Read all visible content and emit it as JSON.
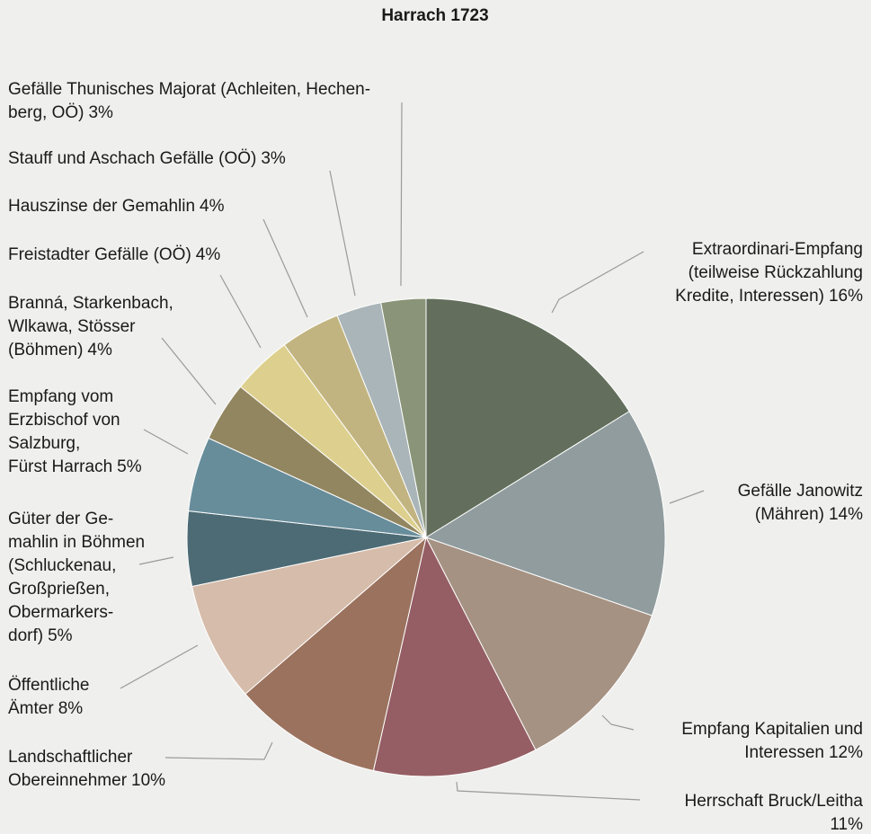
{
  "chart_data": {
    "type": "pie",
    "title": "Harrach 1723",
    "categories": [
      "Extraordinari-Empfang\n(teilweise Rückzahlung\nKredite, Interessen)",
      "Gefälle Janowitz\n(Mähren)",
      "Empfang Kapitalien und\nInteressen",
      "Herrschaft Bruck/Leitha",
      "Landschaftlicher\nObereinnehmer",
      "Öffentliche\nÄmter",
      "Güter der Ge-\nmahlin in Böhmen\n(Schluckenau,\nGroßprießen,\nObermarkers-\ndorf)",
      "Empfang vom\nErzbischof von\nSalzburg,\nFürst Harrach",
      "Branná, Starkenbach,\nWlkawa, Stösser\n(Böhmen)",
      "Freistadter Gefälle (OÖ)",
      "Hauszinse der Gemahlin",
      "Stauff und Aschach Gefälle (OÖ)",
      "Gefälle Thunisches Majorat (Achleiten, Hechen-\nberg, OÖ)"
    ],
    "values": [
      16,
      14,
      12,
      11,
      10,
      8,
      5,
      5,
      4,
      4,
      4,
      3,
      3
    ],
    "value_labels": [
      "16%",
      "14%",
      "12%",
      "11%",
      "10%",
      "8%",
      "5%",
      "5%",
      "4%",
      "4%",
      "4%",
      "3%",
      "3%"
    ],
    "colors": [
      "#636f5c",
      "#909c9e",
      "#a59283",
      "#955e64",
      "#9b725e",
      "#d6bcaa",
      "#4d6b75",
      "#678d9b",
      "#928660",
      "#ddd08e",
      "#c2b480",
      "#a9b5b8",
      "#8a9478"
    ]
  }
}
